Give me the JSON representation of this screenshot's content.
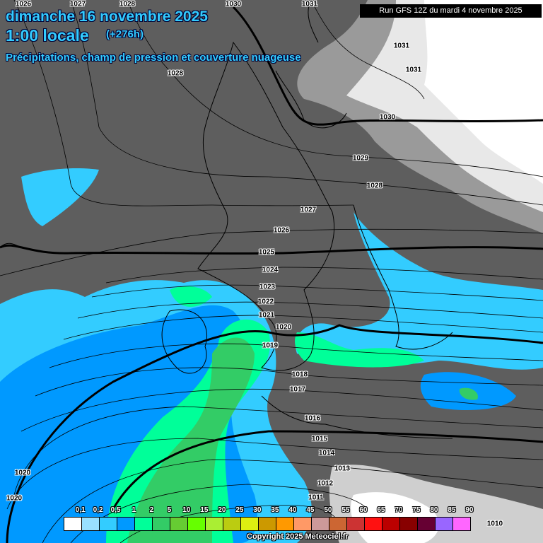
{
  "header": {
    "date": "dimanche 16 novembre 2025",
    "hour": "1:00 locale",
    "lead": "(+276h)",
    "description": "Précipitations, champ de pression et couverture nuageuse",
    "run": "Run GFS 12Z du mardi 4 novembre 2025"
  },
  "isobar_labels": [
    "1026",
    "1027",
    "1028",
    "1030",
    "1031",
    "1031",
    "1031",
    "1030",
    "1029",
    "1028",
    "1027",
    "1026",
    "1025",
    "1024",
    "1023",
    "1022",
    "1021",
    "1020",
    "1019",
    "1018",
    "1017",
    "1016",
    "1015",
    "1014",
    "1013",
    "1012",
    "1011",
    "1010",
    "1020",
    "1020",
    "1028"
  ],
  "legend": {
    "unit_labels": [
      "0,1",
      "0,2",
      "0,5",
      "1",
      "2",
      "5",
      "10",
      "15",
      "20",
      "25",
      "30",
      "35",
      "40",
      "45",
      "50",
      "55",
      "60",
      "65",
      "70",
      "75",
      "80",
      "85",
      "90"
    ],
    "colors": [
      "#ffffff",
      "#99e0ff",
      "#33ccff",
      "#0099ff",
      "#00ff99",
      "#33cc66",
      "#66cc33",
      "#66ff00",
      "#aaee33",
      "#bbcc11",
      "#ddee11",
      "#cc9900",
      "#ff9900",
      "#ff9966",
      "#cc9999",
      "#cc6633",
      "#cc3333",
      "#ff1111",
      "#bb0000",
      "#880000",
      "#660033",
      "#9966ff",
      "#ff66ff"
    ]
  },
  "copyright": "Copyright 2025 Meteociel.fr"
}
